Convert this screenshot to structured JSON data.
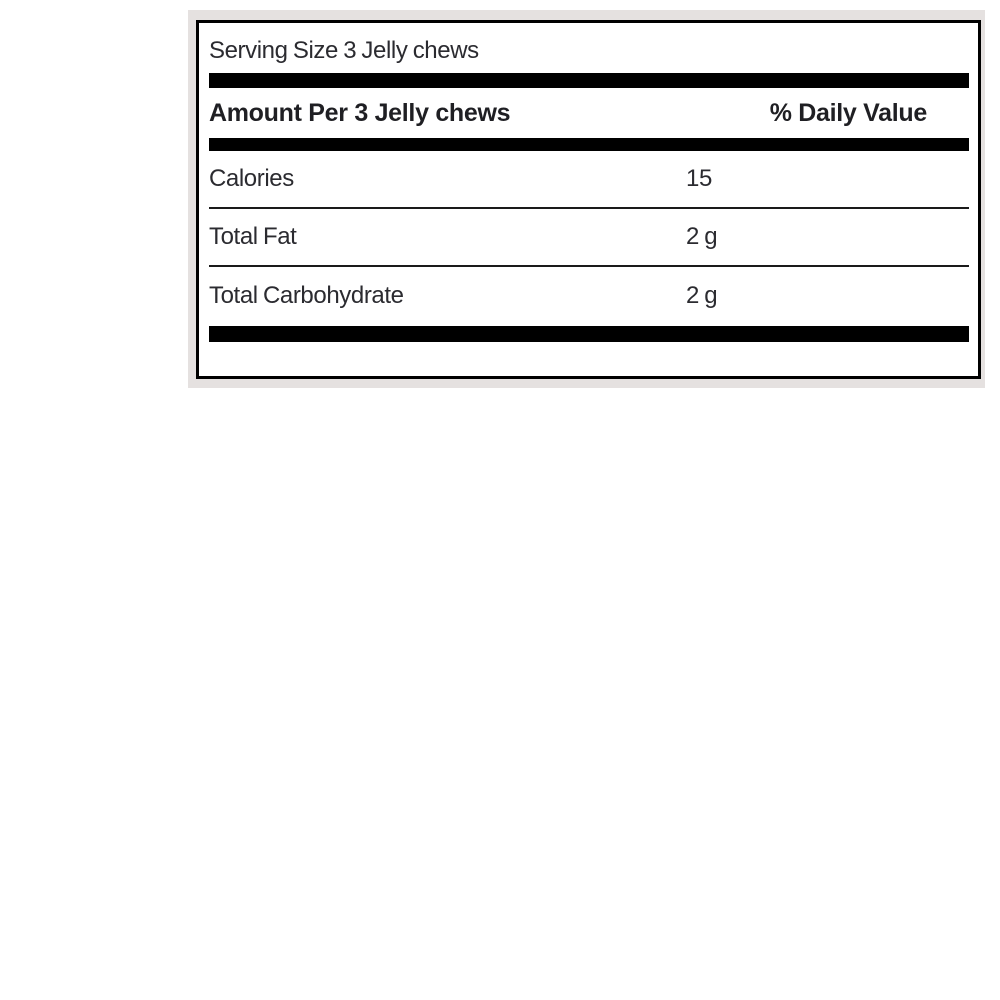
{
  "label": {
    "serving_size": "Serving Size 3 Jelly chews",
    "header": {
      "amount_per": "Amount Per 3 Jelly chews",
      "daily_value": "% Daily Value"
    },
    "rows": [
      {
        "name": "Calories",
        "amount": "15"
      },
      {
        "name": "Total Fat",
        "amount": "2 g"
      },
      {
        "name": "Total Carbohydrate",
        "amount": "2 g"
      }
    ],
    "colors": {
      "surround": "#e5e1e0",
      "panel_border": "#000000",
      "bar": "#000000",
      "text": "#2b2b30"
    }
  }
}
